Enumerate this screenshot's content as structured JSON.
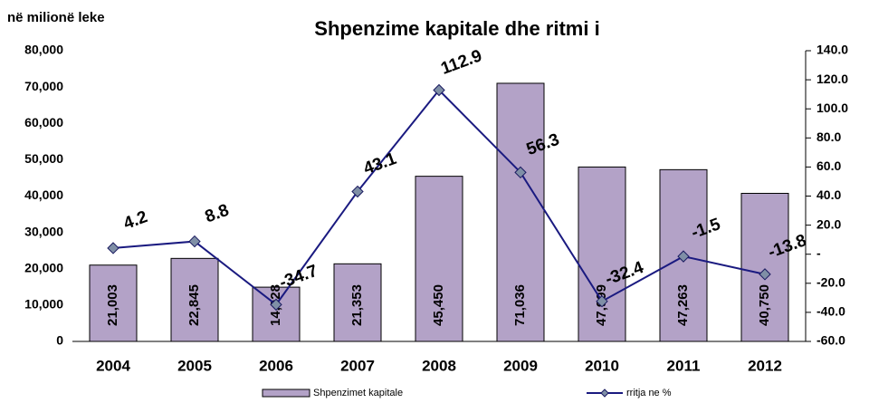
{
  "chart_data": {
    "type": "bar-line",
    "title": "Shpenzime kapitale dhe ritmi i",
    "y_label": "në milionë leke",
    "categories": [
      "2004",
      "2005",
      "2006",
      "2007",
      "2008",
      "2009",
      "2010",
      "2011",
      "2012"
    ],
    "series": [
      {
        "name": "Shpenzimet kapitale",
        "type": "bar",
        "color": "#b3a2c7",
        "values": [
          21003,
          22845,
          14928,
          21353,
          45450,
          71036,
          47999,
          47263,
          40750
        ],
        "value_labels": [
          "21,003",
          "22,845",
          "14,928",
          "21,353",
          "45,450",
          "71,036",
          "47,999",
          "47,263",
          "40,750"
        ]
      },
      {
        "name": "rritja ne %",
        "type": "line",
        "axis": "y2",
        "color": "#1a1a80",
        "values": [
          4.2,
          8.8,
          -34.7,
          43.1,
          112.9,
          56.3,
          -32.4,
          -1.5,
          -13.8
        ]
      }
    ],
    "ylim": [
      0,
      80000
    ],
    "yticks": [
      0,
      {
        "value": 10000,
        "label": "10,000"
      },
      {
        "value": 20000,
        "label": "20,000"
      },
      {
        "value": 30000,
        "label": "30,000"
      },
      {
        "value": 40000,
        "label": "40,000"
      },
      {
        "value": 50000,
        "label": "50,000"
      },
      {
        "value": 60000,
        "label": "60,000"
      },
      {
        "value": 70000,
        "label": "70,000"
      },
      {
        "value": 80000,
        "label": "80,000"
      }
    ],
    "y2lim": [
      -60,
      140
    ],
    "y2ticks": [
      {
        "value": -60,
        "label": "-60.0"
      },
      {
        "value": -40,
        "label": "-40.0"
      },
      {
        "value": -20,
        "label": "-20.0"
      },
      {
        "value": 0,
        "label": "-"
      },
      {
        "value": 20,
        "label": "20.0"
      },
      {
        "value": 40,
        "label": "40.0"
      },
      {
        "value": 60,
        "label": "60.0"
      },
      {
        "value": 80,
        "label": "80.0"
      },
      {
        "value": 100,
        "label": "100.0"
      },
      {
        "value": 120,
        "label": "120.0"
      },
      {
        "value": 140,
        "label": "140.0"
      }
    ],
    "legend": "bottom"
  }
}
